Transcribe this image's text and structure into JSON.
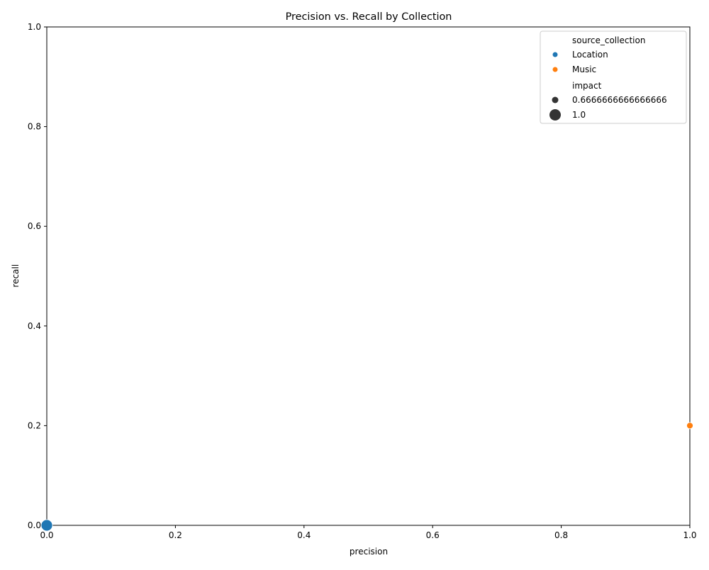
{
  "chart_data": {
    "type": "scatter",
    "title": "Precision vs. Recall by Collection",
    "xlabel": "precision",
    "ylabel": "recall",
    "xlim": [
      0,
      1
    ],
    "ylim": [
      0,
      1
    ],
    "xticks": [
      "0.0",
      "0.2",
      "0.4",
      "0.6",
      "0.8",
      "1.0"
    ],
    "yticks": [
      "0.0",
      "0.2",
      "0.4",
      "0.6",
      "0.8",
      "1.0"
    ],
    "grid": false,
    "legend_placement": "top-right",
    "hue_title": "source_collection",
    "size_title": "impact",
    "series": [
      {
        "name": "Location",
        "color": "#1f77b4",
        "points": [
          {
            "x": 0.0,
            "y": 0.0,
            "impact": 1.0
          }
        ]
      },
      {
        "name": "Music",
        "color": "#ff7f0e",
        "points": [
          {
            "x": 1.0,
            "y": 0.2,
            "impact": 0.6666666666666666
          }
        ]
      }
    ],
    "size_levels": [
      {
        "label": "0.6666666666666666",
        "value": 0.6666666666666666
      },
      {
        "label": "1.0",
        "value": 1.0
      }
    ]
  }
}
